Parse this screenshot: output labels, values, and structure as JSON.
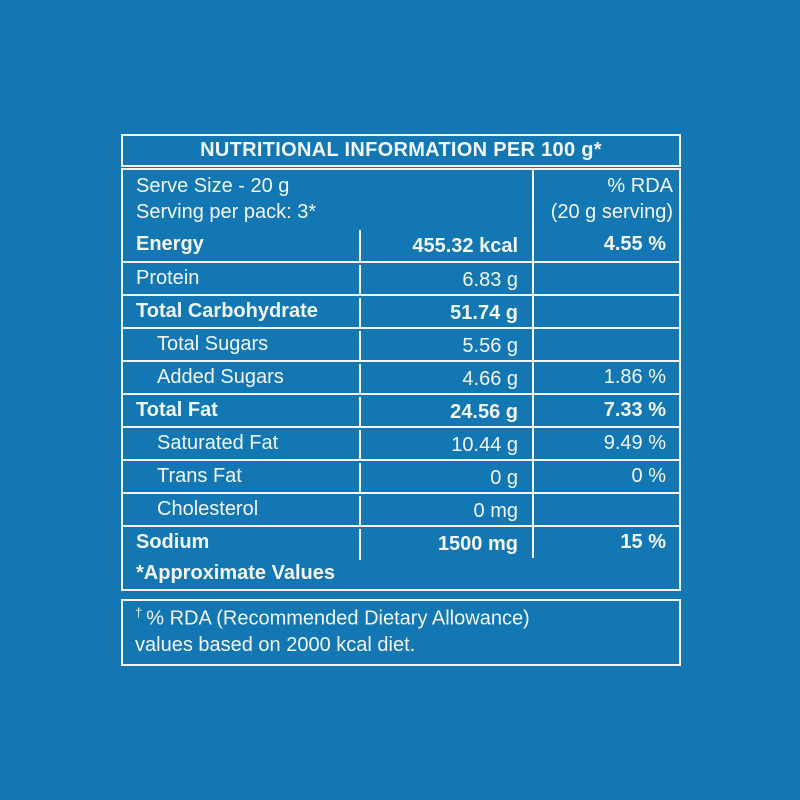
{
  "colors": {
    "background": "#1277b2",
    "foreground": "#f3f6f4"
  },
  "label": {
    "title": "NUTRITIONAL INFORMATION PER 100 g*",
    "serving": {
      "line1": "Serve Size - 20 g",
      "line2": "Serving per pack: 3*"
    },
    "rda_header": {
      "line1": "% RDA",
      "line2": "(20 g serving)"
    },
    "rows": [
      {
        "label": "Energy",
        "value": "455.32 kcal",
        "rda": "4.55 %",
        "bold": true,
        "indent": false
      },
      {
        "label": "Protein",
        "value": "6.83 g",
        "rda": "",
        "bold": false,
        "indent": false
      },
      {
        "label": "Total Carbohydrate",
        "value": "51.74 g",
        "rda": "",
        "bold": true,
        "indent": false
      },
      {
        "label": "Total Sugars",
        "value": "5.56 g",
        "rda": "",
        "bold": false,
        "indent": true
      },
      {
        "label": "Added Sugars",
        "value": "4.66 g",
        "rda": "1.86 %",
        "bold": false,
        "indent": true
      },
      {
        "label": "Total Fat",
        "value": "24.56 g",
        "rda": "7.33 %",
        "bold": true,
        "indent": false
      },
      {
        "label": "Saturated Fat",
        "value": "10.44 g",
        "rda": "9.49 %",
        "bold": false,
        "indent": true
      },
      {
        "label": "Trans Fat",
        "value": "0 g",
        "rda": "0 %",
        "bold": false,
        "indent": true
      },
      {
        "label": "Cholesterol",
        "value": "0 mg",
        "rda": "",
        "bold": false,
        "indent": true
      },
      {
        "label": "Sodium",
        "value": "1500 mg",
        "rda": "15 %",
        "bold": true,
        "indent": false
      }
    ],
    "footer_note": "*Approximate Values",
    "rda_note": {
      "symbol": "†",
      "line1": "% RDA (Recommended Dietary Allowance)",
      "line2": "values based on 2000 kcal diet."
    }
  }
}
